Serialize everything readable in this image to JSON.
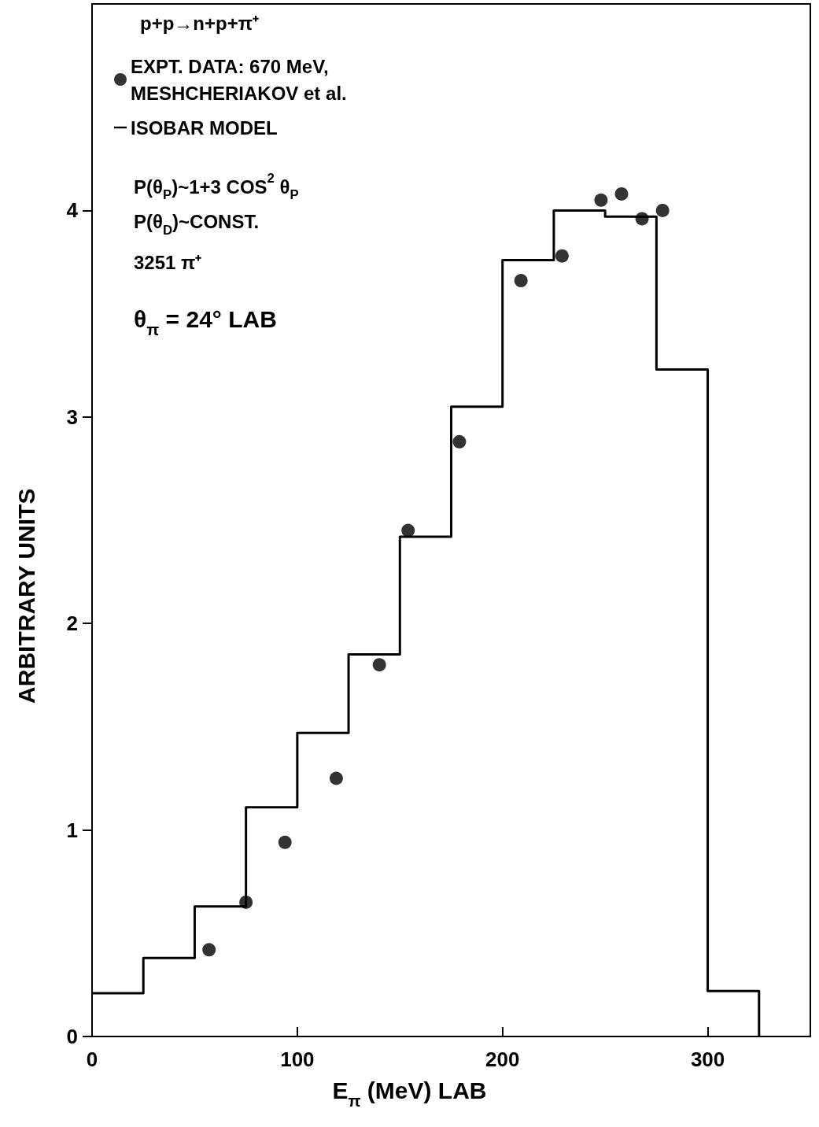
{
  "chart_data": {
    "type": "histogram",
    "xlabel": "E$_{π}$ (MeV) LAB",
    "ylabel": "ARBITRARY UNITS",
    "legend_title": "p+p→n+p+π⁺",
    "annotations": [
      "P(θ$_{P}$)~1+3 COS$^{2}$ θ$_{P}$",
      "P(θ$_{D}$)~CONST.",
      "3251 π⁺",
      "θ$_{π}$ = 24° LAB"
    ],
    "series": [
      {
        "type": "scatter",
        "name": "EXPT. DATA: 670 MeV, MESHCHERIAKOV et al.",
        "color": "#000000",
        "x": [
          57,
          75,
          94,
          119,
          140,
          154,
          179,
          209,
          229,
          248,
          258,
          268,
          278
        ],
        "values": [
          0.42,
          0.65,
          0.94,
          1.25,
          1.8,
          2.45,
          2.88,
          3.66,
          3.78,
          4.05,
          4.08,
          3.96,
          4.0
        ]
      },
      {
        "name": "ISOBAR MODEL",
        "color": "#000000",
        "bins": [
          0,
          25,
          50,
          75,
          100,
          125,
          150,
          175,
          200,
          225,
          250,
          275,
          300,
          325
        ],
        "values": [
          0.21,
          0.38,
          0.63,
          1.11,
          1.47,
          1.85,
          2.42,
          3.05,
          3.76,
          4.0,
          3.97,
          3.23,
          0.22
        ]
      }
    ],
    "xlim": [
      0,
      350
    ],
    "ylim": [
      0,
      5
    ],
    "xticks": [
      0,
      100,
      200,
      300
    ],
    "yticks": [
      0,
      1,
      2,
      3,
      4
    ],
    "legend": "top left",
    "grid": false,
    "marker": "circle"
  }
}
